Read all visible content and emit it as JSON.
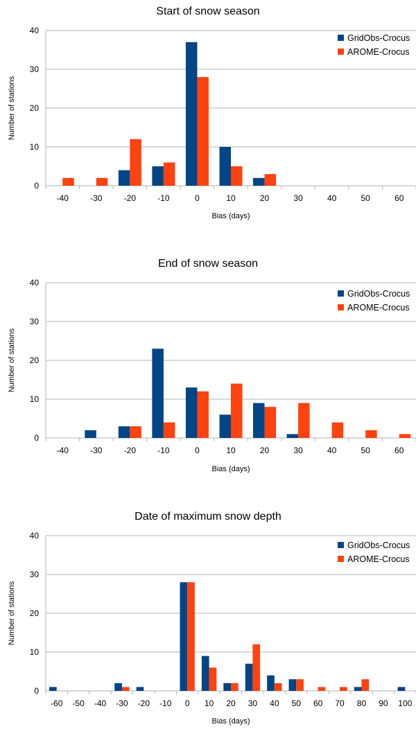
{
  "chart_data": [
    {
      "type": "bar",
      "title": "Start of snow season",
      "xlabel": "Bias (days)",
      "ylabel": "Number of stations",
      "ylim": [
        0,
        40
      ],
      "yticks": [
        "0",
        "10",
        "20",
        "30",
        "40"
      ],
      "categories": [
        "-40",
        "-30",
        "-20",
        "-10",
        "0",
        "10",
        "20",
        "30",
        "40",
        "50",
        "60"
      ],
      "series": [
        {
          "name": "GridObs-Crocus",
          "color": "#004586",
          "values": [
            0,
            0,
            4,
            5,
            37,
            10,
            2,
            0,
            0,
            0,
            0
          ]
        },
        {
          "name": "AROME-Crocus",
          "color": "#ff420e",
          "values": [
            2,
            2,
            12,
            6,
            28,
            5,
            3,
            0,
            0,
            0,
            0
          ]
        }
      ],
      "grid": true,
      "legend": "top-right"
    },
    {
      "type": "bar",
      "title": "End of snow season",
      "xlabel": "Bias (days)",
      "ylabel": "Number of stations",
      "ylim": [
        0,
        40
      ],
      "yticks": [
        "0",
        "10",
        "20",
        "30",
        "40"
      ],
      "categories": [
        "-40",
        "-30",
        "-20",
        "-10",
        "0",
        "10",
        "20",
        "30",
        "40",
        "50",
        "60"
      ],
      "series": [
        {
          "name": "GridObs-Crocus",
          "color": "#004586",
          "values": [
            0,
            2,
            3,
            23,
            13,
            6,
            9,
            1,
            0,
            0,
            0
          ]
        },
        {
          "name": "AROME-Crocus",
          "color": "#ff420e",
          "values": [
            0,
            0,
            3,
            4,
            12,
            14,
            8,
            9,
            4,
            2,
            1
          ]
        }
      ],
      "grid": true,
      "legend": "top-right"
    },
    {
      "type": "bar",
      "title": "Date of maximum snow depth",
      "xlabel": "Bias (days)",
      "ylabel": "Number of stations",
      "ylim": [
        0,
        40
      ],
      "yticks": [
        "0",
        "10",
        "20",
        "30",
        "40"
      ],
      "categories": [
        "-60",
        "-50",
        "-40",
        "-30",
        "-20",
        "-10",
        "0",
        "10",
        "20",
        "30",
        "40",
        "50",
        "60",
        "70",
        "80",
        "90",
        "100"
      ],
      "series": [
        {
          "name": "GridObs-Crocus",
          "color": "#004586",
          "values": [
            1,
            0,
            0,
            2,
            1,
            0,
            28,
            9,
            2,
            7,
            4,
            3,
            0,
            0,
            1,
            0,
            1
          ]
        },
        {
          "name": "AROME-Crocus",
          "color": "#ff420e",
          "values": [
            0,
            0,
            0,
            1,
            0,
            0,
            28,
            6,
            2,
            12,
            2,
            3,
            1,
            1,
            3,
            0,
            0
          ]
        }
      ],
      "grid": true,
      "legend": "top-right"
    }
  ]
}
